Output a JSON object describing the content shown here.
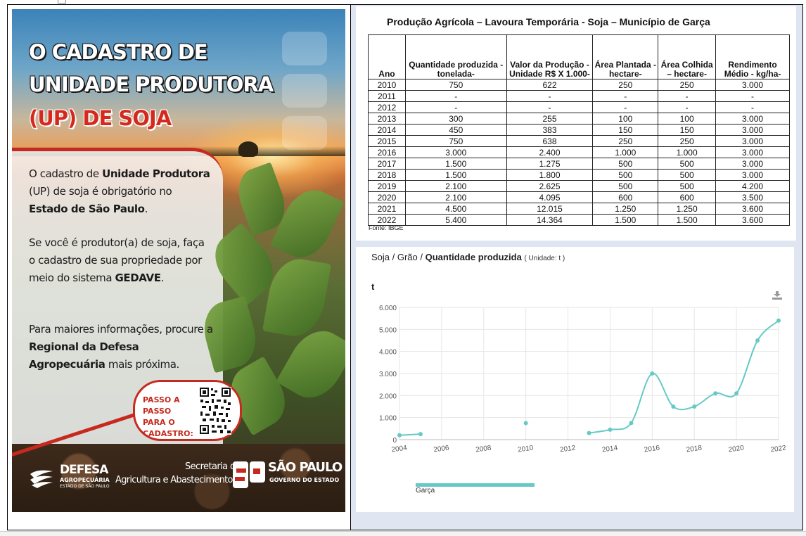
{
  "poster": {
    "headline": [
      "O CADASTRO DE",
      "UNIDADE PRODUTORA",
      "(UP) DE SOJA"
    ],
    "paragraphs": [
      {
        "t1": "O cadastro de ",
        "b1": "Unidade Produtora",
        "t2": " (UP) de soja é obrigatório no ",
        "b2": "Estado de São Paulo",
        "t3": "."
      },
      {
        "t1": "Se você é produtor(a) de soja, faça o cadastro de sua propriedade por meio do sistema ",
        "b1": "GEDAVE",
        "t2": ".",
        "b2": "",
        "t3": ""
      },
      {
        "t1": "Para maiores informações, procure a ",
        "b1": "Regional da Defesa Agropecuária",
        "t2": " mais próxima.",
        "b2": "",
        "t3": ""
      }
    ],
    "qr_label": [
      "PASSO A PASSO",
      "PARA O",
      "CADASTRO:"
    ],
    "logos": {
      "defesa_title": "DEFESA",
      "defesa_sub1": "AGROPECUÁRIA",
      "defesa_sub2": "ESTADO DE SÃO PAULO",
      "secretaria_line1": "Secretaria de",
      "secretaria_line2": "Agricultura e Abastecimento",
      "sp_title": "SÃO PAULO",
      "sp_sub": "GOVERNO DO ESTADO"
    }
  },
  "table": {
    "title": "Produção Agrícola – Lavoura Temporária - Soja – Município de Garça",
    "headers": [
      "Ano",
      "Quantidade produzida - tonelada-",
      "Valor da Produção - Unidade R$ X 1.000-",
      "Área Plantada - hectare-",
      "Área Colhida – hectare-",
      "Rendimento Médio - kg/ha-"
    ],
    "rows": [
      [
        "2010",
        "750",
        "622",
        "250",
        "250",
        "3.000"
      ],
      [
        "2011",
        "-",
        "-",
        "-",
        "-",
        "-"
      ],
      [
        "2012",
        "-",
        "-",
        "-",
        "-",
        "-"
      ],
      [
        "2013",
        "300",
        "255",
        "100",
        "100",
        "3.000"
      ],
      [
        "2014",
        "450",
        "383",
        "150",
        "150",
        "3.000"
      ],
      [
        "2015",
        "750",
        "638",
        "250",
        "250",
        "3.000"
      ],
      [
        "2016",
        "3.000",
        "2.400",
        "1.000",
        "1.000",
        "3.000"
      ],
      [
        "2017",
        "1.500",
        "1.275",
        "500",
        "500",
        "3.000"
      ],
      [
        "2018",
        "1.500",
        "1.800",
        "500",
        "500",
        "3.000"
      ],
      [
        "2019",
        "2.100",
        "2.625",
        "500",
        "500",
        "4.200"
      ],
      [
        "2020",
        "2.100",
        "4.095",
        "600",
        "600",
        "3.500"
      ],
      [
        "2021",
        "4.500",
        "12.015",
        "1.250",
        "1.250",
        "3.600"
      ],
      [
        "2022",
        "5.400",
        "14.364",
        "1.500",
        "1.500",
        "3.600"
      ]
    ],
    "source": "Fonte: IBGE"
  },
  "chart_header": {
    "prefix": "Soja / Grão / ",
    "bold": "Quantidade produzida",
    "unit_text": "( Unidade: t )",
    "y_unit": "t"
  },
  "chart_data": {
    "type": "line",
    "title": "Soja / Grão / Quantidade produzida ( Unidade: t )",
    "ylabel": "t",
    "xlabel": "",
    "ylim": [
      0,
      6000
    ],
    "xlim": [
      2004,
      2022
    ],
    "y_ticks": [
      0,
      1000,
      2000,
      3000,
      4000,
      5000,
      6000
    ],
    "y_tick_labels": [
      "0",
      "1.000",
      "2.000",
      "3.000",
      "4.000",
      "5.000",
      "6.000"
    ],
    "x_ticks": [
      2004,
      2006,
      2008,
      2010,
      2012,
      2014,
      2016,
      2018,
      2020,
      2022
    ],
    "grid": true,
    "legend": "bottom-left",
    "series": [
      {
        "name": "Garça",
        "color": "#66c9c6",
        "segments": [
          [
            {
              "x": 2004,
              "y": 200
            },
            {
              "x": 2005,
              "y": 250
            }
          ],
          [
            {
              "x": 2010,
              "y": 750
            }
          ],
          [
            {
              "x": 2013,
              "y": 300
            },
            {
              "x": 2014,
              "y": 450
            },
            {
              "x": 2015,
              "y": 750
            },
            {
              "x": 2016,
              "y": 3000
            },
            {
              "x": 2017,
              "y": 1500
            },
            {
              "x": 2018,
              "y": 1500
            },
            {
              "x": 2019,
              "y": 2100
            },
            {
              "x": 2020,
              "y": 2100
            },
            {
              "x": 2021,
              "y": 4500
            },
            {
              "x": 2022,
              "y": 5400
            }
          ]
        ]
      }
    ]
  },
  "colors": {
    "poster_red": "#c62a1e",
    "series_teal": "#66c9c6",
    "right_background": "#dfe6f1"
  },
  "icons": [
    "download-icon",
    "qr-code",
    "sp-logo",
    "defesa-logo"
  ]
}
